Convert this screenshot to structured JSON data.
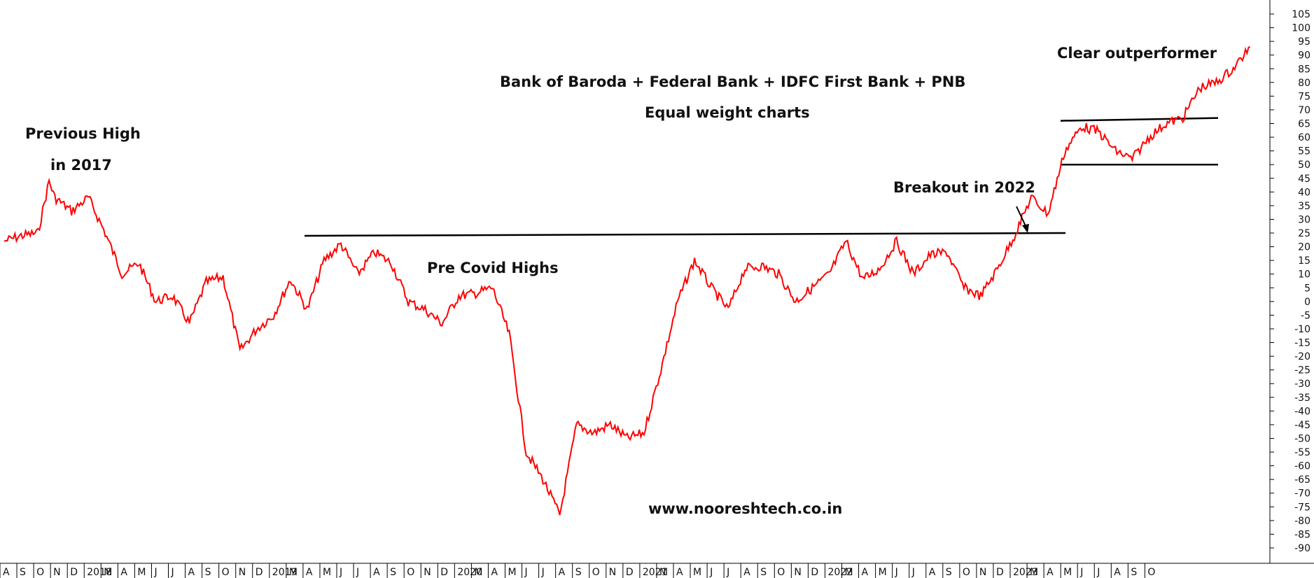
{
  "chart_data": {
    "type": "line",
    "title": "Bank of Baroda +  Federal Bank + IDFC First Bank + PNB",
    "subtitle": "Equal weight charts",
    "watermark": "www.nooreshtech.co.in",
    "line_color": "#ff0000",
    "grid": false,
    "ylim": [
      -95,
      110
    ],
    "y_ticks": [
      105,
      100,
      95,
      90,
      85,
      80,
      75,
      70,
      65,
      60,
      55,
      50,
      45,
      40,
      35,
      30,
      25,
      20,
      15,
      10,
      5,
      0,
      -5,
      -10,
      -15,
      -20,
      -25,
      -30,
      -35,
      -40,
      -45,
      -50,
      -55,
      -60,
      -65,
      -70,
      -75,
      -80,
      -85,
      -90
    ],
    "x_ticks": [
      "A",
      "S",
      "O",
      "N",
      "D",
      "2018",
      "M",
      "A",
      "M",
      "J",
      "J",
      "A",
      "S",
      "O",
      "N",
      "D",
      "2019",
      "M",
      "A",
      "M",
      "J",
      "J",
      "A",
      "S",
      "O",
      "N",
      "D",
      "2020",
      "M",
      "A",
      "M",
      "J",
      "J",
      "A",
      "S",
      "O",
      "N",
      "D",
      "2021",
      "M",
      "A",
      "M",
      "J",
      "J",
      "A",
      "S",
      "O",
      "N",
      "D",
      "2022",
      "M",
      "A",
      "M",
      "J",
      "J",
      "A",
      "S",
      "O",
      "N",
      "D",
      "2023",
      "M",
      "A",
      "M",
      "J",
      "J",
      "A",
      "S",
      "O"
    ],
    "x_domain_note": "monthly, Aug 2017 to Oct 2023",
    "x_start": "2017-08",
    "series": [
      {
        "points": [
          [
            "2017-08",
            22
          ],
          [
            "2017-09",
            24
          ],
          [
            "2017-10",
            25
          ],
          [
            "2017-10-20",
            44
          ],
          [
            "2017-11",
            38
          ],
          [
            "2017-12",
            33
          ],
          [
            "2018-01",
            38
          ],
          [
            "2018-02",
            25
          ],
          [
            "2018-03",
            10
          ],
          [
            "2018-04",
            14
          ],
          [
            "2018-05",
            0
          ],
          [
            "2018-06",
            2
          ],
          [
            "2018-07",
            -8
          ],
          [
            "2018-08",
            7
          ],
          [
            "2018-09",
            9
          ],
          [
            "2018-10",
            -18
          ],
          [
            "2018-11",
            -10
          ],
          [
            "2018-12",
            -5
          ],
          [
            "2019-01",
            8
          ],
          [
            "2019-02",
            -3
          ],
          [
            "2019-03",
            15
          ],
          [
            "2019-04",
            21
          ],
          [
            "2019-05",
            10
          ],
          [
            "2019-06",
            18
          ],
          [
            "2019-07",
            14
          ],
          [
            "2019-08",
            0
          ],
          [
            "2019-09",
            -3
          ],
          [
            "2019-10",
            -8
          ],
          [
            "2019-11",
            2
          ],
          [
            "2019-12",
            3
          ],
          [
            "2020-01",
            5
          ],
          [
            "2020-02",
            -12
          ],
          [
            "2020-03",
            -55
          ],
          [
            "2020-04",
            -65
          ],
          [
            "2020-05",
            -78
          ],
          [
            "2020-06",
            -45
          ],
          [
            "2020-07",
            -48
          ],
          [
            "2020-08",
            -45
          ],
          [
            "2020-09",
            -50
          ],
          [
            "2020-10",
            -48
          ],
          [
            "2020-11",
            -25
          ],
          [
            "2020-12",
            0
          ],
          [
            "2021-01",
            15
          ],
          [
            "2021-02",
            5
          ],
          [
            "2021-03",
            -3
          ],
          [
            "2021-04",
            12
          ],
          [
            "2021-05",
            13
          ],
          [
            "2021-06",
            10
          ],
          [
            "2021-07",
            0
          ],
          [
            "2021-08",
            5
          ],
          [
            "2021-09",
            10
          ],
          [
            "2021-10",
            22
          ],
          [
            "2021-11",
            8
          ],
          [
            "2021-12",
            12
          ],
          [
            "2022-01",
            22
          ],
          [
            "2022-02",
            10
          ],
          [
            "2022-03",
            17
          ],
          [
            "2022-04",
            18
          ],
          [
            "2022-05",
            5
          ],
          [
            "2022-06",
            2
          ],
          [
            "2022-07",
            12
          ],
          [
            "2022-08",
            24
          ],
          [
            "2022-09",
            38
          ],
          [
            "2022-10",
            32
          ],
          [
            "2022-11",
            55
          ],
          [
            "2022-12",
            64
          ],
          [
            "2023-01",
            62
          ],
          [
            "2023-02",
            55
          ],
          [
            "2023-03",
            52
          ],
          [
            "2023-04",
            60
          ],
          [
            "2023-05",
            65
          ],
          [
            "2023-06",
            67
          ],
          [
            "2023-07",
            78
          ],
          [
            "2023-08",
            80
          ],
          [
            "2023-09",
            85
          ],
          [
            "2023-10",
            93
          ]
        ]
      }
    ],
    "trendlines": [
      {
        "from": [
          "2019-01",
          24
        ],
        "to": [
          "2022-09",
          25
        ]
      },
      {
        "from": [
          "2022-09",
          66
        ],
        "to": [
          "2023-08",
          67
        ]
      },
      {
        "from": [
          "2022-09",
          50
        ],
        "to": [
          "2023-08",
          50
        ]
      }
    ],
    "annotations": [
      {
        "text": "Previous High"
      },
      {
        "text": "in 2017"
      },
      {
        "text": "Pre Covid Highs"
      },
      {
        "text": "Breakout in 2022"
      },
      {
        "text": "Clear outperformer"
      }
    ]
  }
}
